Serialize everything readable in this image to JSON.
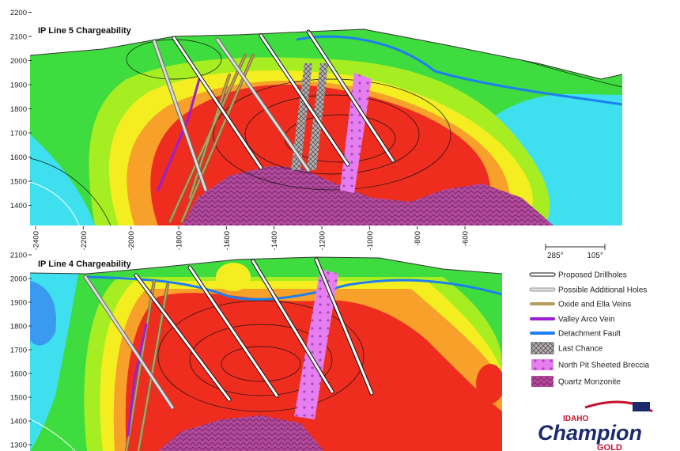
{
  "panels": [
    {
      "title": "IP Line 5 Chargeability",
      "yticks": [
        2200,
        2100,
        2000,
        1900,
        1800,
        1700,
        1600,
        1500,
        1400
      ]
    },
    {
      "title": "IP Line 4 Chargeability",
      "yticks": [
        2100,
        2000,
        1900,
        1800,
        1700,
        1600,
        1500,
        1400,
        1300
      ]
    }
  ],
  "xticks": [
    -2400,
    -2200,
    -2000,
    -1800,
    -1600,
    -1400,
    -1200,
    -1000,
    -800,
    -600
  ],
  "orientation": [
    "285°",
    "105°"
  ],
  "legend": [
    "Proposed Drillholes",
    "Possible Additional Holes",
    "Oxide and Ella Veins",
    "Valley Arco Vein",
    "Detachment Fault",
    "Last Chance",
    "North Pit Sheeted Breccia",
    "Quartz Monzonite"
  ],
  "logo": {
    "brand": "IDAHO",
    "name": "Champion",
    "suffix": "GOLD"
  }
}
